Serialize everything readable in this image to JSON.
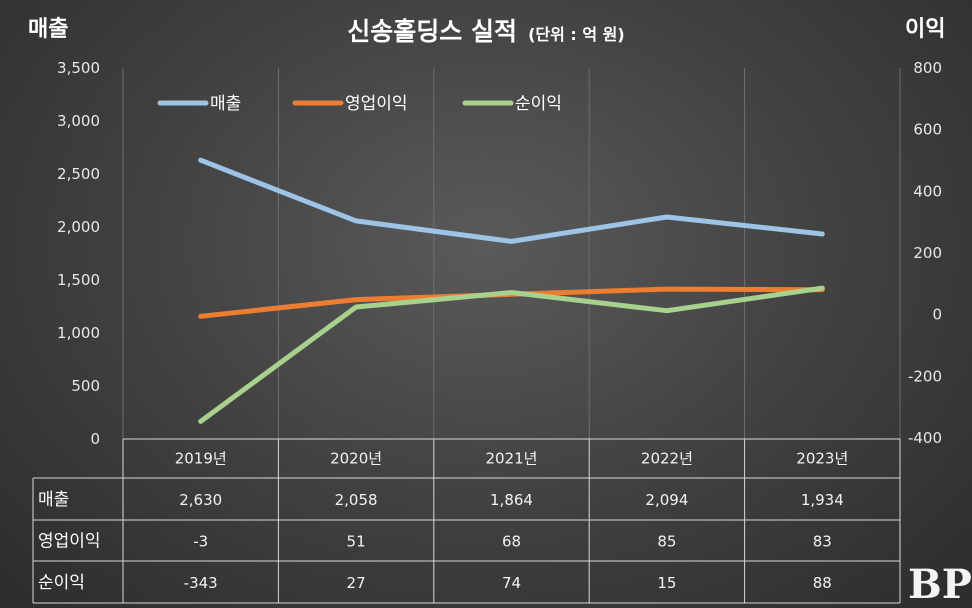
{
  "chart_data": {
    "type": "line",
    "title": "신송홀딩스 실적",
    "unit": "(단위 : 억 원)",
    "ylabel_left": "매출",
    "ylabel_right": "이익",
    "categories": [
      "2019년",
      "2020년",
      "2021년",
      "2022년",
      "2023년"
    ],
    "ylim_left": [
      0,
      3500
    ],
    "yticks_left": [
      "3,500",
      "3,000",
      "2,500",
      "2,000",
      "1,500",
      "1,000",
      "500",
      "0"
    ],
    "ylim_right": [
      -400,
      800
    ],
    "yticks_right": [
      "800",
      "600",
      "400",
      "200",
      "0",
      "-200",
      "-400"
    ],
    "series": [
      {
        "name": "매출",
        "axis": "left",
        "color": "#9dc3e6",
        "values": [
          2630,
          2058,
          1864,
          2094,
          1934
        ],
        "labels": [
          "2,630",
          "2,058",
          "1,864",
          "2,094",
          "1,934"
        ]
      },
      {
        "name": "영업이익",
        "axis": "right",
        "color": "#ed7d31",
        "values": [
          -3,
          51,
          68,
          85,
          83
        ],
        "labels": [
          "-3",
          "51",
          "68",
          "85",
          "83"
        ]
      },
      {
        "name": "순이익",
        "axis": "right",
        "color": "#a9d18e",
        "values": [
          -343,
          27,
          74,
          15,
          88
        ],
        "labels": [
          "-343",
          "27",
          "74",
          "15",
          "88"
        ]
      }
    ],
    "legend": "top-left"
  },
  "watermark": "BP"
}
